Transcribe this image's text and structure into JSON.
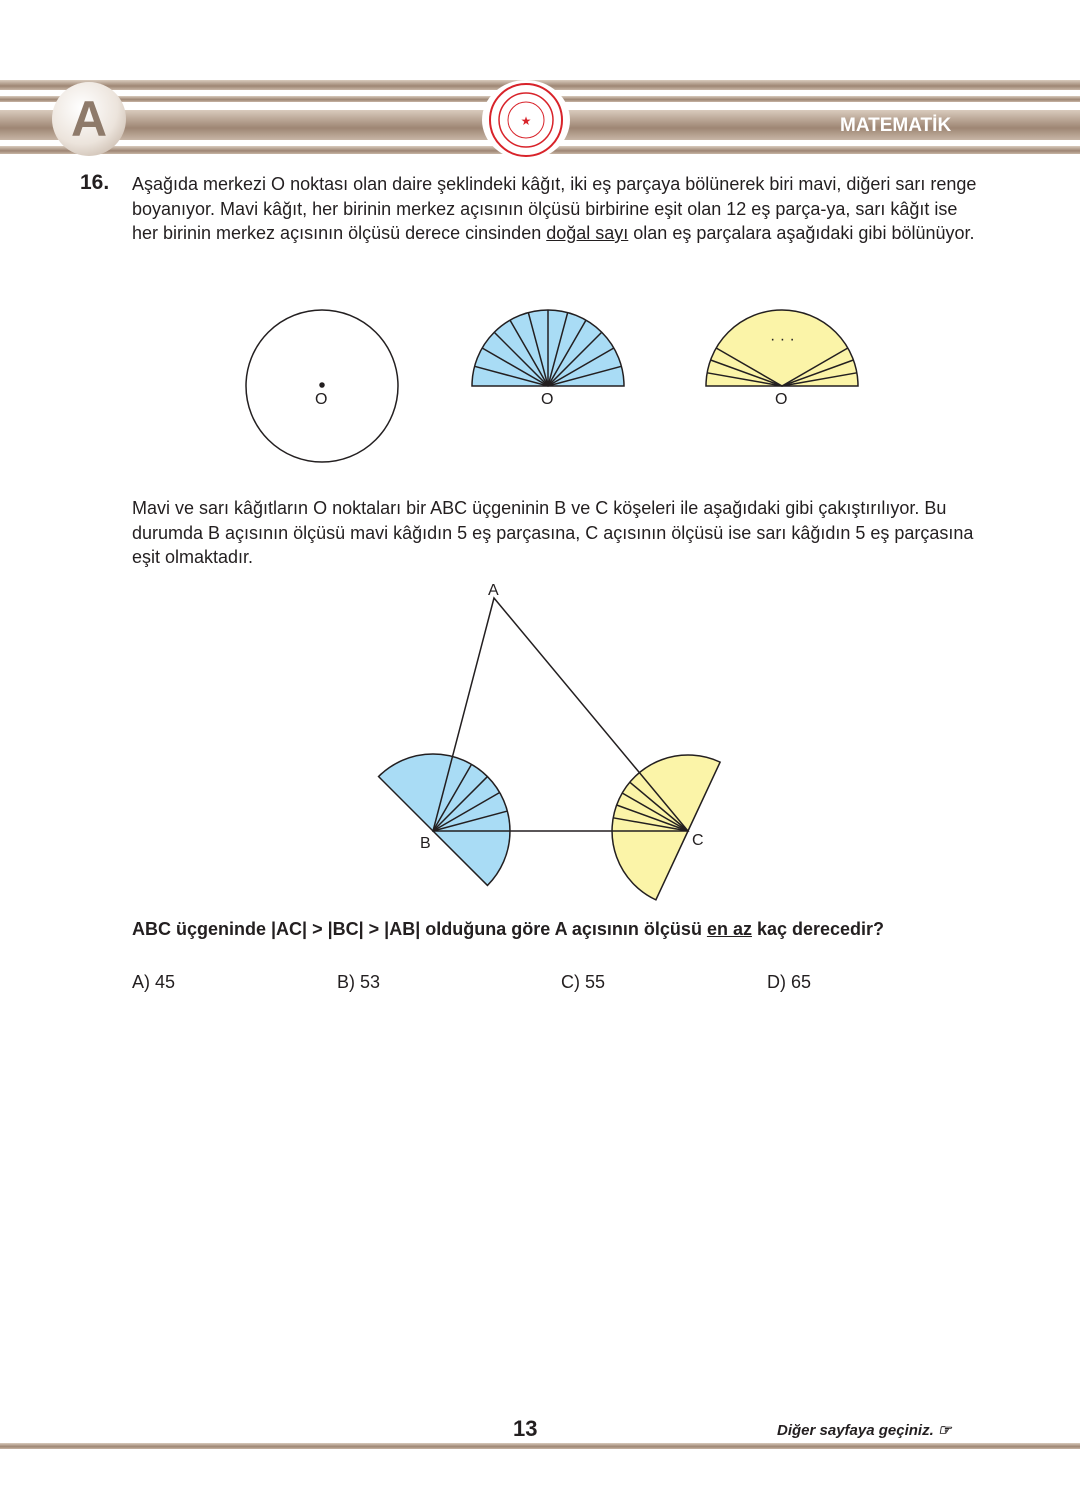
{
  "header": {
    "booklet": "A",
    "subject": "MATEMATİK",
    "seal": "T.C. MİLLÎ EĞİTİM BAKANLIĞI"
  },
  "question": {
    "number": "16.",
    "intro_a": "Aşağıda merkezi O noktası olan daire şeklindeki kâğıt, iki eş parçaya bölünerek biri mavi, diğeri sarı renge boyanıyor. Mavi kâğıt, her birinin merkez açısının ölçüsü birbirine eşit olan 12 eş parça-ya, sarı kâğıt ise her birinin merkez açısının ölçüsü derece cinsinden ",
    "intro_underline": "doğal sayı",
    "intro_b": " olan eş parçalara aşağıdaki gibi bölünüyor.",
    "labels": {
      "o1": "O",
      "o2": "O",
      "o3": "O",
      "a": "A",
      "b": "B",
      "c": "C",
      "dots": "· · ·"
    },
    "middle": "Mavi ve sarı kâğıtların O noktaları bir ABC üçgeninin B ve C köşeleri ile aşağıdaki gibi çakıştırılıyor. Bu durumda B açısının ölçüsü mavi kâğıdın 5 eş parçasına, C açısının ölçüsü ise sarı kâğıdın 5 eş parçasına eşit olmaktadır.",
    "prompt_a": "ABC üçgeninde |AC| > |BC| > |AB| olduğuna göre A açısının ölçüsü ",
    "prompt_underline": "en az",
    "prompt_b": " kaç derecedir?",
    "options": [
      "A) 45",
      "B) 53",
      "C) 55",
      "D) 65"
    ]
  },
  "footer": {
    "page": "13",
    "next": "Diğer sayfaya geçiniz. ☞"
  },
  "colors": {
    "blue": "#a9dcf5",
    "yellow": "#fbf4a8",
    "band": "#9e8674",
    "seal": "#d8232a"
  }
}
